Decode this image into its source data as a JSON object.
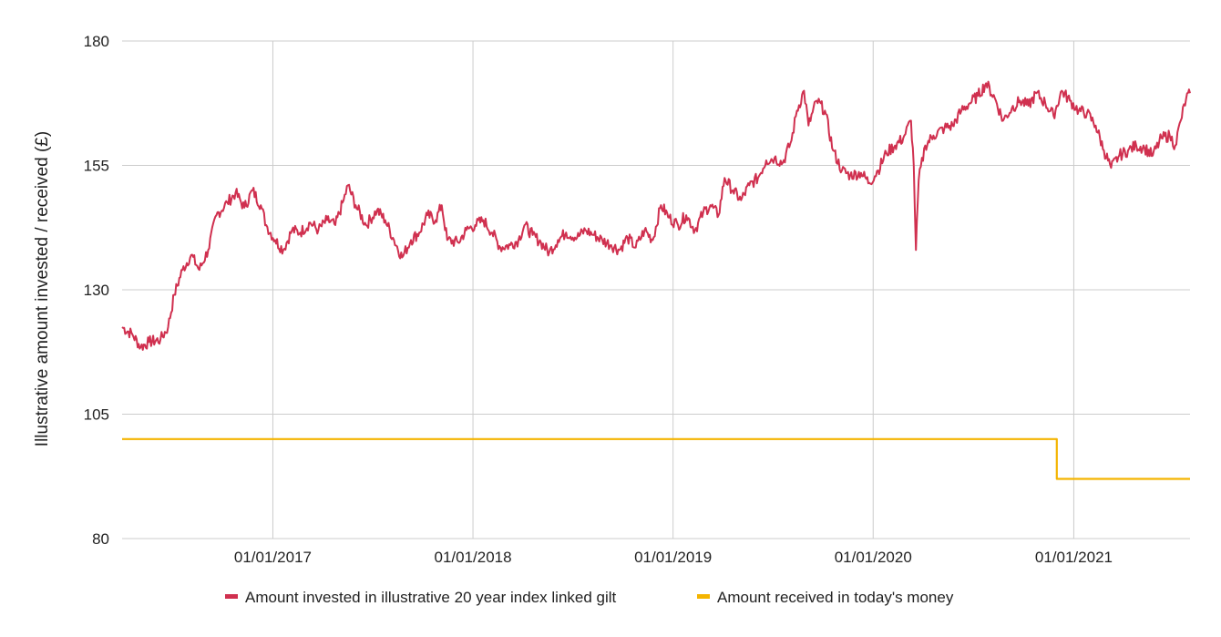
{
  "chart_data": {
    "type": "line",
    "title": "",
    "xlabel": "",
    "ylabel": "Illustrative amount invested / received (£)",
    "ylim": [
      80,
      180
    ],
    "y_ticks": [
      "80",
      "105",
      "130",
      "155",
      "180"
    ],
    "xlim": [
      "2016-04-01",
      "2021-08-01"
    ],
    "x_ticks": [
      "01/01/2017",
      "01/01/2018",
      "01/01/2019",
      "01/01/2020",
      "01/01/2021"
    ],
    "x_tick_dates": [
      "2017-01-01",
      "2018-01-01",
      "2019-01-01",
      "2020-01-01",
      "2021-01-01"
    ],
    "grid": true,
    "legend_position": "bottom",
    "colors": {
      "invested": "#d0304f",
      "received": "#f4b400",
      "grid": "#cccccc"
    },
    "series": [
      {
        "name": "Amount invested in illustrative 20 year index linked gilt",
        "color": "#d0304f",
        "points": [
          [
            "2016-04-01",
            122.5
          ],
          [
            "2016-04-20",
            121.0
          ],
          [
            "2016-05-05",
            118.5
          ],
          [
            "2016-05-20",
            119.5
          ],
          [
            "2016-06-10",
            120.0
          ],
          [
            "2016-06-24",
            122.5
          ],
          [
            "2016-07-05",
            129.0
          ],
          [
            "2016-07-20",
            134.0
          ],
          [
            "2016-08-05",
            137.0
          ],
          [
            "2016-08-20",
            134.0
          ],
          [
            "2016-09-05",
            138.0
          ],
          [
            "2016-09-20",
            145.0
          ],
          [
            "2016-10-10",
            147.5
          ],
          [
            "2016-10-25",
            149.5
          ],
          [
            "2016-11-10",
            146.5
          ],
          [
            "2016-11-25",
            150.0
          ],
          [
            "2016-12-10",
            147.0
          ],
          [
            "2016-12-20",
            143.0
          ],
          [
            "2017-01-05",
            140.0
          ],
          [
            "2017-01-20",
            138.0
          ],
          [
            "2017-02-05",
            142.0
          ],
          [
            "2017-02-20",
            141.5
          ],
          [
            "2017-03-10",
            143.5
          ],
          [
            "2017-03-25",
            142.0
          ],
          [
            "2017-04-10",
            144.0
          ],
          [
            "2017-04-25",
            143.0
          ],
          [
            "2017-05-10",
            148.0
          ],
          [
            "2017-05-18",
            151.0
          ],
          [
            "2017-06-01",
            147.0
          ],
          [
            "2017-06-20",
            143.0
          ],
          [
            "2017-07-10",
            146.0
          ],
          [
            "2017-07-25",
            144.0
          ],
          [
            "2017-08-10",
            140.0
          ],
          [
            "2017-08-25",
            136.5
          ],
          [
            "2017-09-10",
            140.0
          ],
          [
            "2017-09-25",
            141.5
          ],
          [
            "2017-10-10",
            145.0
          ],
          [
            "2017-10-25",
            144.0
          ],
          [
            "2017-11-05",
            147.0
          ],
          [
            "2017-11-15",
            140.0
          ],
          [
            "2017-12-05",
            139.5
          ],
          [
            "2017-12-20",
            142.0
          ],
          [
            "2018-01-05",
            143.0
          ],
          [
            "2018-01-20",
            144.0
          ],
          [
            "2018-02-05",
            141.5
          ],
          [
            "2018-02-20",
            138.5
          ],
          [
            "2018-03-10",
            139.0
          ],
          [
            "2018-03-25",
            140.0
          ],
          [
            "2018-04-05",
            143.0
          ],
          [
            "2018-04-20",
            141.0
          ],
          [
            "2018-05-05",
            139.5
          ],
          [
            "2018-05-20",
            137.5
          ],
          [
            "2018-06-05",
            140.0
          ],
          [
            "2018-06-20",
            141.5
          ],
          [
            "2018-07-10",
            140.5
          ],
          [
            "2018-07-25",
            142.0
          ],
          [
            "2018-08-10",
            141.0
          ],
          [
            "2018-08-25",
            140.0
          ],
          [
            "2018-09-10",
            139.0
          ],
          [
            "2018-09-25",
            138.0
          ],
          [
            "2018-10-10",
            140.5
          ],
          [
            "2018-10-25",
            138.5
          ],
          [
            "2018-11-10",
            142.0
          ],
          [
            "2018-11-25",
            140.0
          ],
          [
            "2018-12-10",
            147.0
          ],
          [
            "2018-12-25",
            144.5
          ],
          [
            "2019-01-10",
            143.0
          ],
          [
            "2019-01-25",
            145.0
          ],
          [
            "2019-02-10",
            142.0
          ],
          [
            "2019-02-25",
            145.5
          ],
          [
            "2019-03-10",
            147.0
          ],
          [
            "2019-03-25",
            145.0
          ],
          [
            "2019-04-05",
            152.5
          ],
          [
            "2019-04-20",
            150.0
          ],
          [
            "2019-05-05",
            148.0
          ],
          [
            "2019-05-20",
            151.0
          ],
          [
            "2019-06-05",
            152.5
          ],
          [
            "2019-06-20",
            156.0
          ],
          [
            "2019-07-05",
            156.5
          ],
          [
            "2019-07-20",
            155.5
          ],
          [
            "2019-08-05",
            160.0
          ],
          [
            "2019-08-15",
            166.0
          ],
          [
            "2019-08-28",
            170.0
          ],
          [
            "2019-09-05",
            163.0
          ],
          [
            "2019-09-20",
            168.0
          ],
          [
            "2019-10-05",
            166.0
          ],
          [
            "2019-10-20",
            158.0
          ],
          [
            "2019-11-05",
            154.0
          ],
          [
            "2019-11-20",
            153.0
          ],
          [
            "2019-12-10",
            153.5
          ],
          [
            "2019-12-25",
            151.5
          ],
          [
            "2020-01-10",
            154.0
          ],
          [
            "2020-01-25",
            157.5
          ],
          [
            "2020-02-10",
            159.0
          ],
          [
            "2020-02-25",
            160.5
          ],
          [
            "2020-03-10",
            164.0
          ],
          [
            "2020-03-15",
            155.0
          ],
          [
            "2020-03-19",
            138.0
          ],
          [
            "2020-03-24",
            152.0
          ],
          [
            "2020-04-05",
            159.0
          ],
          [
            "2020-04-20",
            161.0
          ],
          [
            "2020-05-10",
            162.5
          ],
          [
            "2020-05-25",
            163.0
          ],
          [
            "2020-06-10",
            166.0
          ],
          [
            "2020-06-25",
            167.5
          ],
          [
            "2020-07-10",
            169.0
          ],
          [
            "2020-07-25",
            171.5
          ],
          [
            "2020-08-10",
            168.5
          ],
          [
            "2020-08-25",
            164.0
          ],
          [
            "2020-09-10",
            166.5
          ],
          [
            "2020-09-25",
            168.0
          ],
          [
            "2020-10-10",
            167.0
          ],
          [
            "2020-10-25",
            169.5
          ],
          [
            "2020-11-10",
            167.5
          ],
          [
            "2020-11-25",
            165.0
          ],
          [
            "2020-12-10",
            170.0
          ],
          [
            "2020-12-25",
            168.0
          ],
          [
            "2021-01-10",
            166.0
          ],
          [
            "2021-01-25",
            165.5
          ],
          [
            "2021-02-10",
            163.0
          ],
          [
            "2021-02-25",
            158.0
          ],
          [
            "2021-03-10",
            154.5
          ],
          [
            "2021-03-25",
            157.0
          ],
          [
            "2021-04-10",
            158.0
          ],
          [
            "2021-04-25",
            159.0
          ],
          [
            "2021-05-10",
            158.5
          ],
          [
            "2021-05-25",
            157.0
          ],
          [
            "2021-06-10",
            160.5
          ],
          [
            "2021-06-25",
            161.0
          ],
          [
            "2021-07-05",
            159.0
          ],
          [
            "2021-07-15",
            164.0
          ],
          [
            "2021-07-25",
            168.5
          ],
          [
            "2021-08-01",
            169.5
          ]
        ]
      },
      {
        "name": "Amount received in today's money",
        "color": "#f4b400",
        "step": true,
        "points": [
          [
            "2016-04-01",
            100.0
          ],
          [
            "2020-12-01",
            100.0
          ],
          [
            "2020-12-01",
            92.0
          ],
          [
            "2021-08-01",
            92.0
          ]
        ]
      }
    ]
  }
}
